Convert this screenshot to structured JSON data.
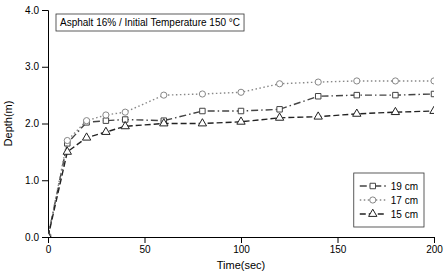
{
  "chart_data": {
    "type": "line",
    "title": "Asphalt 16% / Initial Temperature 150 °C",
    "xlabel": "Time(sec)",
    "ylabel": "Depth(m)",
    "x": [
      0,
      10,
      20,
      30,
      40,
      60,
      80,
      100,
      120,
      140,
      160,
      180,
      200
    ],
    "xlim": [
      0,
      200
    ],
    "ylim": [
      0.0,
      4.0
    ],
    "xticks": [
      0,
      50,
      100,
      150,
      200
    ],
    "yticks": [
      {
        "value": 0.0,
        "label": "0.0"
      },
      {
        "value": 1.0,
        "label": "1.0"
      },
      {
        "value": 2.0,
        "label": "2.0"
      },
      {
        "value": 3.0,
        "label": "3.0"
      },
      {
        "value": 4.0,
        "label": "4.0"
      }
    ],
    "series": [
      {
        "name": "19 cm",
        "color": "#444444",
        "marker": "square",
        "line_style": "dashdot",
        "values": [
          0.0,
          1.65,
          2.02,
          2.05,
          2.07,
          2.05,
          2.22,
          2.22,
          2.25,
          2.48,
          2.5,
          2.5,
          2.52
        ]
      },
      {
        "name": "17 cm",
        "color": "#888888",
        "marker": "circle",
        "line_style": "dotted",
        "values": [
          0.0,
          1.7,
          2.05,
          2.15,
          2.2,
          2.5,
          2.52,
          2.55,
          2.7,
          2.73,
          2.75,
          2.75,
          2.75
        ]
      },
      {
        "name": "15 cm",
        "color": "#222222",
        "marker": "triangle",
        "line_style": "dashed",
        "values": [
          0.0,
          1.5,
          1.75,
          1.85,
          1.95,
          2.0,
          2.0,
          2.03,
          2.1,
          2.12,
          2.17,
          2.2,
          2.22
        ]
      }
    ],
    "legend": "lower right",
    "grid": false
  }
}
